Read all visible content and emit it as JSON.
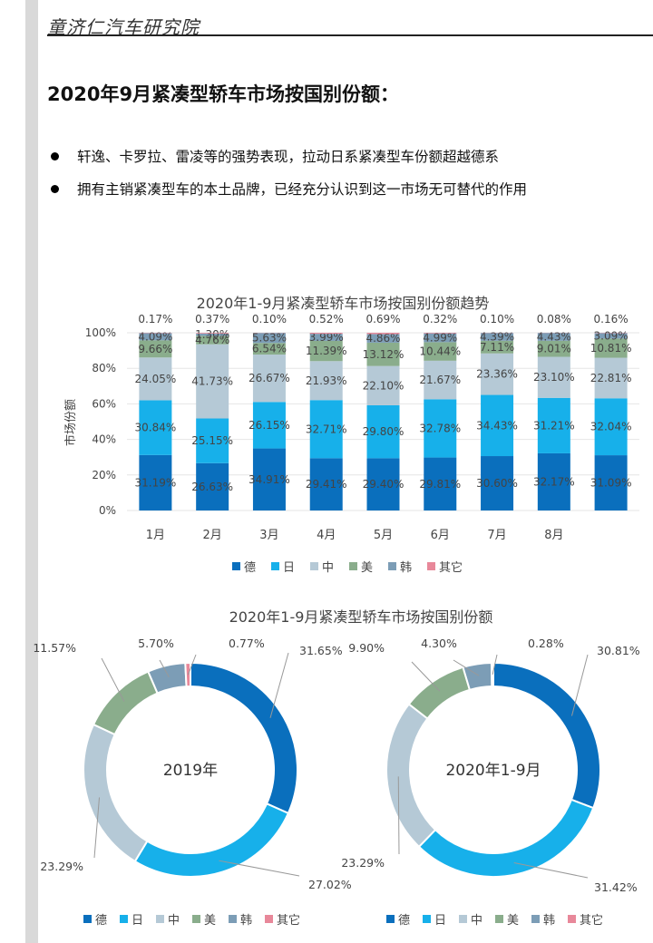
{
  "header": {
    "org_name": "童济仁汽车研究院"
  },
  "page_title": "2020年9月紧凑型轿车市场按国别份额：",
  "bullets": [
    "轩逸、卡罗拉、雷凌等的强势表现，拉动日系紧凑型车份额超越德系",
    "拥有主销紧凑型车的本土品牌，已经充分认识到这一市场无可替代的作用"
  ],
  "colors": {
    "德": "#0a6fbd",
    "日": "#17b0ea",
    "中": "#b5c9d6",
    "美": "#8aad8c",
    "韩": "#7c9db6",
    "其它": "#e8889a"
  },
  "chart_data": [
    {
      "type": "bar",
      "stacked": true,
      "title": "2020年1-9月紧凑型轿车市场按国别份额趋势",
      "ylabel": "市场份额",
      "ylim": [
        0,
        100
      ],
      "yticks": [
        "0%",
        "20%",
        "40%",
        "60%",
        "80%",
        "100%"
      ],
      "categories": [
        "1月",
        "2月",
        "3月",
        "4月",
        "5月",
        "6月",
        "7月",
        "8月",
        ""
      ],
      "legend": [
        "德",
        "日",
        "中",
        "美",
        "韩",
        "其它"
      ],
      "legend_position": "bottom",
      "series": [
        {
          "name": "德",
          "values": [
            31.19,
            26.63,
            34.91,
            29.41,
            29.4,
            29.81,
            30.6,
            32.17,
            31.09
          ],
          "labels": [
            "31.19%",
            "26.63%",
            "34.91%",
            "29.41%",
            "29.40%",
            "29.81%",
            "30.60%",
            "32.17%",
            "31.09%"
          ]
        },
        {
          "name": "日",
          "values": [
            30.84,
            25.15,
            26.15,
            32.71,
            29.8,
            32.78,
            34.43,
            31.21,
            32.04
          ],
          "labels": [
            "30.84%",
            "25.15%",
            "26.15%",
            "32.71%",
            "29.80%",
            "32.78%",
            "34.43%",
            "31.21%",
            "32.04%"
          ]
        },
        {
          "name": "中",
          "values": [
            24.05,
            41.73,
            26.67,
            21.93,
            22.1,
            21.67,
            23.36,
            23.1,
            22.81
          ],
          "labels": [
            "24.05%",
            "41.73%",
            "26.67%",
            "21.93%",
            "22.10%",
            "21.67%",
            "23.36%",
            "23.10%",
            "22.81%"
          ]
        },
        {
          "name": "美",
          "values": [
            9.66,
            4.76,
            6.54,
            11.39,
            13.12,
            10.44,
            7.11,
            9.01,
            10.81
          ],
          "labels": [
            "9.66%",
            "4.76%",
            "6.54%",
            "11.39%",
            "13.12%",
            "10.44%",
            "7.11%",
            "9.01%",
            "10.81%"
          ]
        },
        {
          "name": "韩",
          "values": [
            4.09,
            1.3,
            5.63,
            3.99,
            4.86,
            4.99,
            4.39,
            4.43,
            3.09
          ],
          "labels": [
            "4.09%",
            "1.30%",
            "5.63%",
            "3.99%",
            "4.86%",
            "4.99%",
            "4.39%",
            "4.43%",
            "3.09%"
          ]
        },
        {
          "name": "其它",
          "values": [
            0.17,
            0.37,
            0.1,
            0.52,
            0.69,
            0.32,
            0.1,
            0.08,
            0.16
          ],
          "labels": [
            "0.17%",
            "0.37%",
            "0.10%",
            "0.52%",
            "0.69%",
            "0.32%",
            "0.10%",
            "0.08%",
            "0.16%"
          ]
        }
      ]
    },
    {
      "type": "pie",
      "donut": true,
      "title": "2020年1-9月紧凑型轿车市场按国别份额",
      "center_label": "2019年",
      "slices": [
        {
          "name": "德",
          "value": 31.65,
          "label": "31.65%"
        },
        {
          "name": "日",
          "value": 27.02,
          "label": "27.02%"
        },
        {
          "name": "中",
          "value": 23.29,
          "label": "23.29%"
        },
        {
          "name": "美",
          "value": 11.57,
          "label": "11.57%"
        },
        {
          "name": "韩",
          "value": 5.7,
          "label": "5.70%"
        },
        {
          "name": "其它",
          "value": 0.77,
          "label": "0.77%"
        }
      ],
      "legend": [
        "德",
        "日",
        "中",
        "美",
        "韩",
        "其它"
      ]
    },
    {
      "type": "pie",
      "donut": true,
      "center_label": "2020年1-9月",
      "slices": [
        {
          "name": "德",
          "value": 30.81,
          "label": "30.81%"
        },
        {
          "name": "日",
          "value": 31.42,
          "label": "31.42%"
        },
        {
          "name": "中",
          "value": 23.29,
          "label": "23.29%"
        },
        {
          "name": "美",
          "value": 9.9,
          "label": "9.90%"
        },
        {
          "name": "韩",
          "value": 4.3,
          "label": "4.30%"
        },
        {
          "name": "其它",
          "value": 0.28,
          "label": "0.28%"
        }
      ],
      "legend": [
        "德",
        "日",
        "中",
        "美",
        "韩",
        "其它"
      ]
    }
  ]
}
